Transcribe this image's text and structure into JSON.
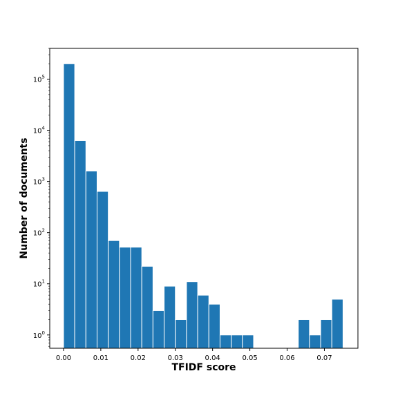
{
  "chart_data": {
    "type": "bar",
    "title": "",
    "xlabel": "TFIDF score",
    "ylabel": "Number of documents",
    "yscale": "log",
    "xlim": [
      -0.0037,
      0.079
    ],
    "ylim": [
      0.55,
      400000
    ],
    "grid": false,
    "bin_width": 0.003,
    "bins_start": [
      0.0,
      0.003,
      0.006,
      0.009,
      0.012,
      0.015,
      0.018,
      0.021,
      0.024,
      0.027,
      0.03,
      0.033,
      0.036,
      0.039,
      0.042,
      0.045,
      0.048,
      0.051,
      0.054,
      0.057,
      0.06,
      0.063,
      0.066,
      0.069,
      0.072
    ],
    "values": [
      200000,
      6300,
      1600,
      640,
      70,
      52,
      52,
      22,
      3,
      9,
      2,
      11,
      6,
      4,
      1,
      1,
      1,
      0,
      0,
      0,
      0,
      2,
      1,
      2,
      5
    ],
    "color": "#1f77b4",
    "edge_color": "#ffffff",
    "x_ticks": [
      0.0,
      0.01,
      0.02,
      0.03,
      0.04,
      0.05,
      0.06,
      0.07
    ],
    "x_tick_labels": [
      "0.00",
      "0.01",
      "0.02",
      "0.03",
      "0.04",
      "0.05",
      "0.06",
      "0.07"
    ],
    "y_ticks": [
      {
        "value": 1,
        "base": "10",
        "exp": "0"
      },
      {
        "value": 10,
        "base": "10",
        "exp": "1"
      },
      {
        "value": 100,
        "base": "10",
        "exp": "2"
      },
      {
        "value": 1000,
        "base": "10",
        "exp": "3"
      },
      {
        "value": 10000,
        "base": "10",
        "exp": "4"
      },
      {
        "value": 100000,
        "base": "10",
        "exp": "5"
      }
    ]
  }
}
